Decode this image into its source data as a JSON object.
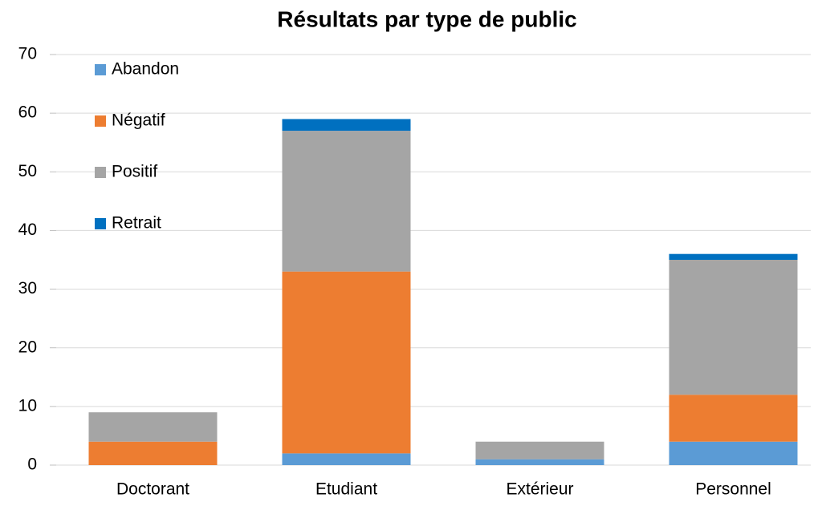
{
  "chart_data": {
    "type": "stacked_bar",
    "title": "Résultats par type de public",
    "categories": [
      "Doctorant",
      "Etudiant",
      "Extérieur",
      "Personnel"
    ],
    "series": [
      {
        "name": "Abandon",
        "color": "#5b9bd5",
        "values": [
          0,
          2,
          1,
          4
        ]
      },
      {
        "name": "Négatif",
        "color": "#ed7d31",
        "values": [
          4,
          31,
          0,
          8
        ]
      },
      {
        "name": "Positif",
        "color": "#a5a5a5",
        "values": [
          5,
          24,
          3,
          23
        ]
      },
      {
        "name": "Retrait",
        "color": "#0070c0",
        "values": [
          0,
          2,
          0,
          1
        ]
      }
    ],
    "ylim": [
      0,
      70
    ],
    "yticks": [
      0,
      10,
      20,
      30,
      40,
      50,
      60,
      70
    ],
    "grid": true,
    "legend": "top-left"
  }
}
